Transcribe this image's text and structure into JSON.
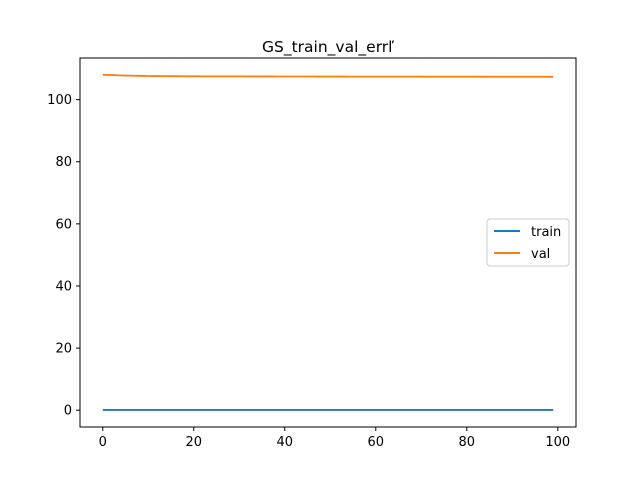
{
  "chart_data": {
    "type": "line",
    "title": "GS_train_val_errľ",
    "xlabel": "",
    "ylabel": "",
    "xlim": [
      -5,
      104
    ],
    "ylim": [
      -5.4,
      113.4
    ],
    "xticks": [
      0,
      20,
      40,
      60,
      80,
      100
    ],
    "yticks": [
      0,
      20,
      40,
      60,
      80,
      100
    ],
    "grid": false,
    "legend_position": "center-right",
    "x": {
      "start": 0,
      "end": 99,
      "step": 1
    },
    "series": [
      {
        "name": "train",
        "color": "#1f77b4",
        "keypoints": [
          [
            0,
            0.1
          ],
          [
            99,
            0.1
          ]
        ]
      },
      {
        "name": "val",
        "color": "#ff7f0e",
        "keypoints": [
          [
            0,
            108.0
          ],
          [
            2,
            107.9
          ],
          [
            5,
            107.75
          ],
          [
            10,
            107.6
          ],
          [
            20,
            107.5
          ],
          [
            40,
            107.45
          ],
          [
            60,
            107.4
          ],
          [
            80,
            107.38
          ],
          [
            99,
            107.35
          ]
        ]
      }
    ]
  }
}
